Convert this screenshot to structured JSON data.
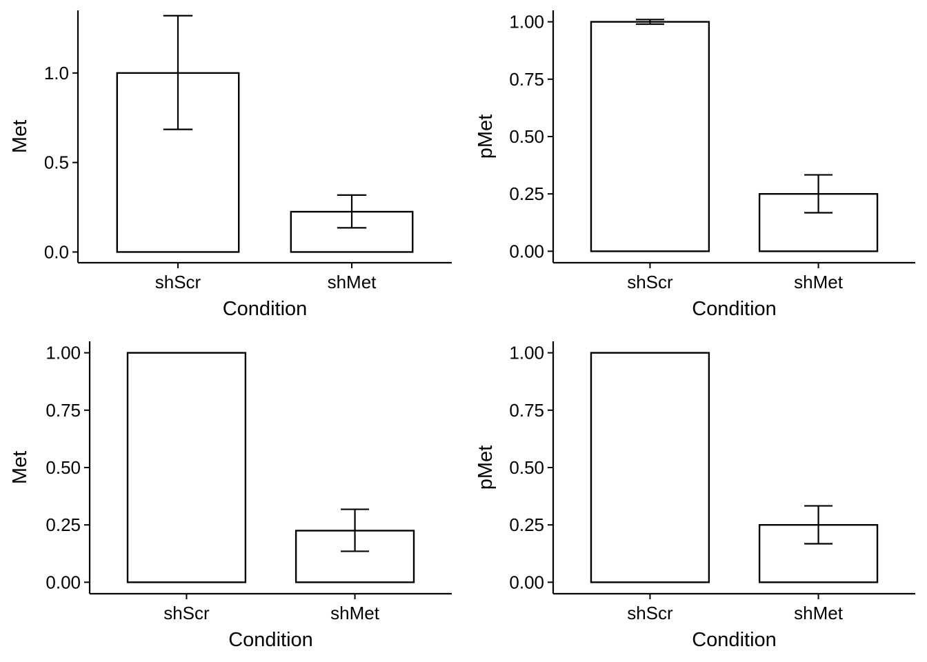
{
  "chart_data": [
    {
      "type": "bar",
      "categories": [
        "shScr",
        "shMet"
      ],
      "values": [
        1.0,
        0.225
      ],
      "errors": [
        [
          0.685,
          1.32
        ],
        [
          0.135,
          0.318
        ]
      ],
      "xlabel": "Condition",
      "ylabel": "Met",
      "ylim": [
        -0.06,
        1.35
      ],
      "yticks": [
        0.0,
        0.5,
        1.0
      ],
      "ytick_labels": [
        "0.0",
        "0.5",
        "1.0"
      ],
      "grid": false
    },
    {
      "type": "bar",
      "categories": [
        "shScr",
        "shMet"
      ],
      "values": [
        1.0,
        0.25
      ],
      "errors": [
        [
          0.99,
          1.01
        ],
        [
          0.168,
          0.333
        ]
      ],
      "xlabel": "Condition",
      "ylabel": "pMet",
      "ylim": [
        -0.05,
        1.05
      ],
      "yticks": [
        0.0,
        0.25,
        0.5,
        0.75,
        1.0
      ],
      "ytick_labels": [
        "0.00",
        "0.25",
        "0.50",
        "0.75",
        "1.00"
      ],
      "grid": false
    },
    {
      "type": "bar",
      "categories": [
        "shScr",
        "shMet"
      ],
      "values": [
        1.0,
        0.225
      ],
      "errors": [
        null,
        [
          0.135,
          0.318
        ]
      ],
      "xlabel": "Condition",
      "ylabel": "Met",
      "ylim": [
        -0.05,
        1.05
      ],
      "yticks": [
        0.0,
        0.25,
        0.5,
        0.75,
        1.0
      ],
      "ytick_labels": [
        "0.00",
        "0.25",
        "0.50",
        "0.75",
        "1.00"
      ],
      "grid": false
    },
    {
      "type": "bar",
      "categories": [
        "shScr",
        "shMet"
      ],
      "values": [
        1.0,
        0.25
      ],
      "errors": [
        null,
        [
          0.168,
          0.333
        ]
      ],
      "xlabel": "Condition",
      "ylabel": "pMet",
      "ylim": [
        -0.05,
        1.05
      ],
      "yticks": [
        0.0,
        0.25,
        0.5,
        0.75,
        1.0
      ],
      "ytick_labels": [
        "0.00",
        "0.25",
        "0.50",
        "0.75",
        "1.00"
      ],
      "grid": false
    }
  ]
}
